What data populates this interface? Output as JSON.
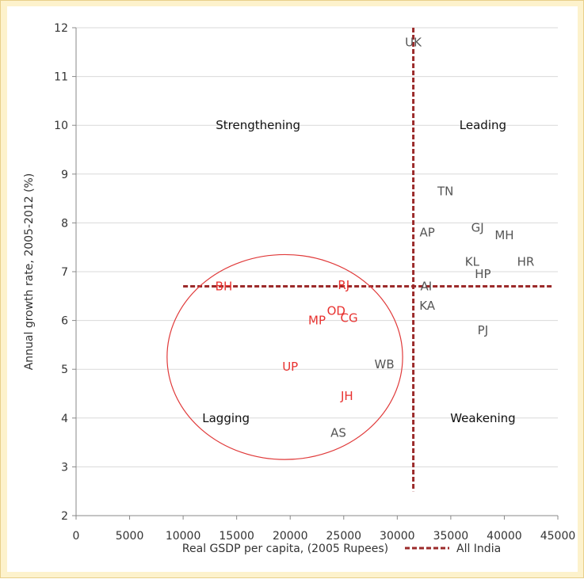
{
  "chart_data": {
    "type": "scatter",
    "xlabel": "Real GSDP per capita, (2005 Rupees)",
    "ylabel": "Annual growth rate, 2005-2012 (%)",
    "xlim": [
      0,
      45000
    ],
    "ylim": [
      2,
      12
    ],
    "x_ticks": [
      "0",
      "5000",
      "10000",
      "15000",
      "20000",
      "25000",
      "30000",
      "35000",
      "40000",
      "45000"
    ],
    "y_ticks": [
      "2",
      "3",
      "4",
      "5",
      "6",
      "7",
      "8",
      "9",
      "10",
      "11",
      "12"
    ],
    "grid": "horizontal",
    "legend_position": "bottom-right",
    "series_style": {
      "lagging_color": "#e8312f",
      "other_color": "#555555",
      "reference_color": "#9b2a2a",
      "circle_color": "#e03a3a"
    },
    "points": [
      {
        "label": "UK",
        "x": 31500,
        "y": 11.7,
        "group": "other"
      },
      {
        "label": "TN",
        "x": 34500,
        "y": 8.65,
        "group": "other"
      },
      {
        "label": "GJ",
        "x": 37500,
        "y": 7.9,
        "group": "other"
      },
      {
        "label": "MH",
        "x": 40000,
        "y": 7.75,
        "group": "other"
      },
      {
        "label": "AP",
        "x": 32800,
        "y": 7.8,
        "group": "other"
      },
      {
        "label": "KL",
        "x": 37000,
        "y": 7.2,
        "group": "other"
      },
      {
        "label": "HR",
        "x": 42000,
        "y": 7.2,
        "group": "other"
      },
      {
        "label": "HP",
        "x": 38000,
        "y": 6.95,
        "group": "other"
      },
      {
        "label": "AI",
        "x": 32700,
        "y": 6.7,
        "group": "other"
      },
      {
        "label": "KA",
        "x": 32800,
        "y": 6.3,
        "group": "other"
      },
      {
        "label": "PJ",
        "x": 38000,
        "y": 5.8,
        "group": "other"
      },
      {
        "label": "WB",
        "x": 28800,
        "y": 5.1,
        "group": "other"
      },
      {
        "label": "AS",
        "x": 24500,
        "y": 3.7,
        "group": "other"
      },
      {
        "label": "BH",
        "x": 13800,
        "y": 6.7,
        "group": "lagging"
      },
      {
        "label": "RJ",
        "x": 25000,
        "y": 6.72,
        "group": "lagging"
      },
      {
        "label": "OD",
        "x": 24300,
        "y": 6.2,
        "group": "lagging"
      },
      {
        "label": "MP",
        "x": 22500,
        "y": 6.0,
        "group": "lagging"
      },
      {
        "label": "CG",
        "x": 25500,
        "y": 6.05,
        "group": "lagging"
      },
      {
        "label": "UP",
        "x": 20000,
        "y": 5.05,
        "group": "lagging"
      },
      {
        "label": "JH",
        "x": 25300,
        "y": 4.45,
        "group": "lagging"
      }
    ],
    "reference_lines": {
      "label": "All India",
      "horizontal": {
        "y": 6.7,
        "x_from": 10000,
        "x_to": 44500
      },
      "vertical": {
        "x": 31500,
        "y_from": 2.5,
        "y_to": 12.0
      }
    },
    "highlight_ellipse": {
      "cx": 19500,
      "cy": 5.25,
      "rx": 11000,
      "ry": 2.1
    },
    "quadrant_labels": [
      {
        "text": "Strengthening",
        "x": 17000,
        "y": 10.0
      },
      {
        "text": "Leading",
        "x": 38000,
        "y": 10.0
      },
      {
        "text": "Lagging",
        "x": 14000,
        "y": 4.0
      },
      {
        "text": "Weakening",
        "x": 38000,
        "y": 4.0
      }
    ]
  }
}
